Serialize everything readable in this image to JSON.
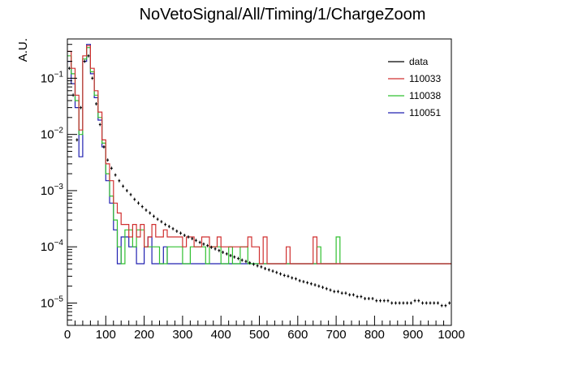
{
  "chart_data": {
    "type": "histogram",
    "title": "NoVetoSignal/All/Timing/1/ChargeZoom",
    "xlabel": "",
    "ylabel": "A.U.",
    "xlim": [
      0,
      1000
    ],
    "ylim": [
      4e-06,
      0.5
    ],
    "yscale": "log",
    "grid": false,
    "legend_position": "top-right",
    "xticks": [
      "0",
      "100",
      "200",
      "300",
      "400",
      "500",
      "600",
      "700",
      "800",
      "900",
      "1000"
    ],
    "yticks": [
      {
        "value": 1e-05,
        "base": "10",
        "exp": "−5"
      },
      {
        "value": 0.0001,
        "base": "10",
        "exp": "−4"
      },
      {
        "value": 0.001,
        "base": "10",
        "exp": "−3"
      },
      {
        "value": 0.01,
        "base": "10",
        "exp": "−2"
      },
      {
        "value": 0.1,
        "base": "10",
        "exp": "−1"
      }
    ],
    "bin_width": 10,
    "bin_starts": [
      0,
      10,
      20,
      30,
      40,
      50,
      60,
      70,
      80,
      90,
      100,
      110,
      120,
      130,
      140,
      150,
      160,
      170,
      180,
      190,
      200,
      210,
      220,
      230,
      240,
      250,
      260,
      270,
      280,
      290,
      300,
      310,
      320,
      330,
      340,
      350,
      360,
      370,
      380,
      390,
      400,
      410,
      420,
      430,
      440,
      450,
      460,
      470,
      480,
      490,
      500,
      510,
      520,
      530,
      540,
      550,
      560,
      570,
      580,
      590,
      600,
      610,
      620,
      630,
      640,
      650,
      660,
      670,
      680,
      690,
      700,
      710,
      720,
      730,
      740,
      750,
      760,
      770,
      780,
      790,
      800,
      810,
      820,
      830,
      840,
      850,
      860,
      870,
      880,
      890,
      900,
      910,
      920,
      930,
      940,
      950,
      960,
      970,
      980,
      990
    ],
    "series": [
      {
        "name": "data",
        "color": "#000000",
        "style": "markers",
        "values": [
          0.15,
          0.05,
          0.008,
          0.03,
          0.2,
          0.25,
          0.1,
          0.035,
          0.015,
          0.006,
          0.0035,
          0.0025,
          0.0019,
          0.0015,
          0.0012,
          0.001,
          0.00085,
          0.0007,
          0.0006,
          0.00052,
          0.00045,
          0.0004,
          0.00035,
          0.00031,
          0.00028,
          0.00025,
          0.00023,
          0.00021,
          0.00019,
          0.000175,
          0.00016,
          0.00015,
          0.00014,
          0.00013,
          0.00012,
          0.000112,
          0.000105,
          9.8e-05,
          9.2e-05,
          8.6e-05,
          8e-05,
          7.5e-05,
          7e-05,
          6.6e-05,
          6.2e-05,
          5.8e-05,
          5.5e-05,
          5.2e-05,
          4.9e-05,
          4.6e-05,
          4.4e-05,
          4.1e-05,
          3.9e-05,
          3.7e-05,
          3.5e-05,
          3.3e-05,
          3.1e-05,
          3e-05,
          2.8e-05,
          2.7e-05,
          2.5e-05,
          2.4e-05,
          2.3e-05,
          2.2e-05,
          2.1e-05,
          2e-05,
          1.9e-05,
          1.8e-05,
          1.7e-05,
          1.6e-05,
          1.6e-05,
          1.5e-05,
          1.5e-05,
          1.4e-05,
          1.4e-05,
          1.3e-05,
          1.3e-05,
          1.2e-05,
          1.2e-05,
          1.2e-05,
          1.1e-05,
          1.1e-05,
          1.1e-05,
          1.1e-05,
          1e-05,
          1e-05,
          1e-05,
          1e-05,
          1e-05,
          1e-05,
          1.1e-05,
          1.1e-05,
          1e-05,
          1e-05,
          1e-05,
          1e-05,
          1e-05,
          9e-06,
          9e-06,
          1e-05
        ]
      },
      {
        "name": "110033",
        "color": "#d03030",
        "style": "step",
        "values": [
          0.3,
          0.15,
          0.05,
          0.012,
          0.25,
          0.38,
          0.15,
          0.06,
          0.025,
          0.008,
          0.003,
          0.0015,
          0.0006,
          0.0004,
          0.00025,
          0.00025,
          0.00015,
          0.00025,
          0.00015,
          0.00025,
          0.0001,
          0.00015,
          0.00025,
          0.00015,
          0.00015,
          0.0002,
          0.00015,
          0.00015,
          0.00015,
          0.00015,
          0.0001,
          0.00015,
          0.00015,
          0.0001,
          0.0001,
          0.00015,
          0.00015,
          0.0001,
          0.0001,
          0.00015,
          0.0001,
          0.0001,
          0.0001,
          0.0001,
          0.0001,
          0.0001,
          0.0001,
          0.00015,
          0.0001,
          0.0001,
          5e-05,
          0.00015,
          5e-05,
          5e-05,
          5e-05,
          5e-05,
          5e-05,
          0.0001,
          5e-05,
          5e-05,
          5e-05,
          5e-05,
          5e-05,
          5e-05,
          0.00015,
          5e-05,
          5e-05,
          5e-05,
          5e-05,
          5e-05,
          5e-05,
          5e-05,
          5e-05,
          5e-05,
          5e-05,
          5e-05,
          5e-05,
          5e-05,
          5e-05,
          5e-05,
          5e-05,
          5e-05,
          5e-05,
          5e-05,
          5e-05,
          5e-05,
          5e-05,
          5e-05,
          5e-05,
          5e-05,
          5e-05,
          5e-05,
          5e-05,
          5e-05,
          5e-05,
          5e-05,
          5e-05,
          5e-05,
          5e-05,
          5e-05
        ]
      },
      {
        "name": "110038",
        "color": "#30c030",
        "style": "step",
        "values": [
          0.25,
          0.12,
          0.04,
          0.01,
          0.22,
          0.35,
          0.13,
          0.05,
          0.02,
          0.007,
          0.002,
          0.0008,
          0.0003,
          0.0001,
          5e-05,
          0.0002,
          0.0002,
          0.0001,
          0.0002,
          0.0002,
          0.0001,
          0.0001,
          0.0001,
          0.0001,
          5e-05,
          5e-05,
          0.0001,
          0.0001,
          0.0001,
          0.0001,
          5e-05,
          5e-05,
          0.0001,
          0.0001,
          0.0001,
          0.0001,
          5e-05,
          0.0001,
          0.0001,
          0.0001,
          5e-05,
          5e-05,
          0.0001,
          5e-05,
          5e-05,
          0.0001,
          0.0001,
          5e-05,
          5e-05,
          5e-05,
          5e-05,
          5e-05,
          5e-05,
          5e-05,
          5e-05,
          5e-05,
          5e-05,
          5e-05,
          5e-05,
          5e-05,
          5e-05,
          5e-05,
          5e-05,
          5e-05,
          5e-05,
          0.0001,
          5e-05,
          5e-05,
          5e-05,
          5e-05,
          0.00015,
          5e-05,
          5e-05,
          5e-05,
          5e-05,
          5e-05,
          5e-05,
          5e-05,
          5e-05,
          5e-05,
          5e-05,
          5e-05,
          5e-05,
          5e-05,
          5e-05,
          5e-05,
          5e-05,
          5e-05,
          5e-05,
          5e-05,
          5e-05,
          5e-05,
          5e-05,
          5e-05,
          5e-05,
          5e-05,
          5e-05,
          5e-05,
          5e-05,
          5e-05
        ]
      },
      {
        "name": "110051",
        "color": "#2020b0",
        "style": "step",
        "values": [
          0.2,
          0.08,
          0.03,
          0.004,
          0.2,
          0.4,
          0.12,
          0.045,
          0.018,
          0.006,
          0.0015,
          0.0006,
          0.0002,
          5e-05,
          0.00015,
          0.00015,
          0.0001,
          0.0001,
          5e-05,
          5e-05,
          0.0001,
          0.00015,
          5e-05,
          5e-05,
          5e-05,
          0.0001,
          5e-05,
          5e-05,
          5e-05,
          5e-05,
          5e-05,
          5e-05,
          5e-05,
          5e-05,
          5e-05,
          5e-05,
          5e-05,
          5e-05,
          5e-05,
          5e-05,
          5e-05,
          5e-05,
          5e-05,
          5e-05,
          5e-05,
          5e-05,
          5e-05,
          5e-05,
          5e-05,
          5e-05,
          5e-05,
          5e-05,
          5e-05,
          5e-05,
          5e-05,
          5e-05,
          5e-05,
          5e-05,
          5e-05,
          5e-05,
          5e-05,
          5e-05,
          5e-05,
          5e-05,
          5e-05,
          5e-05,
          5e-05,
          5e-05,
          5e-05,
          5e-05,
          5e-05,
          5e-05,
          5e-05,
          5e-05,
          5e-05,
          5e-05,
          5e-05,
          5e-05,
          5e-05,
          5e-05,
          5e-05,
          5e-05,
          5e-05,
          5e-05,
          5e-05,
          5e-05,
          5e-05,
          5e-05,
          5e-05,
          5e-05,
          5e-05,
          5e-05,
          5e-05,
          5e-05,
          5e-05,
          5e-05,
          5e-05,
          5e-05,
          5e-05,
          5e-05
        ]
      }
    ]
  }
}
